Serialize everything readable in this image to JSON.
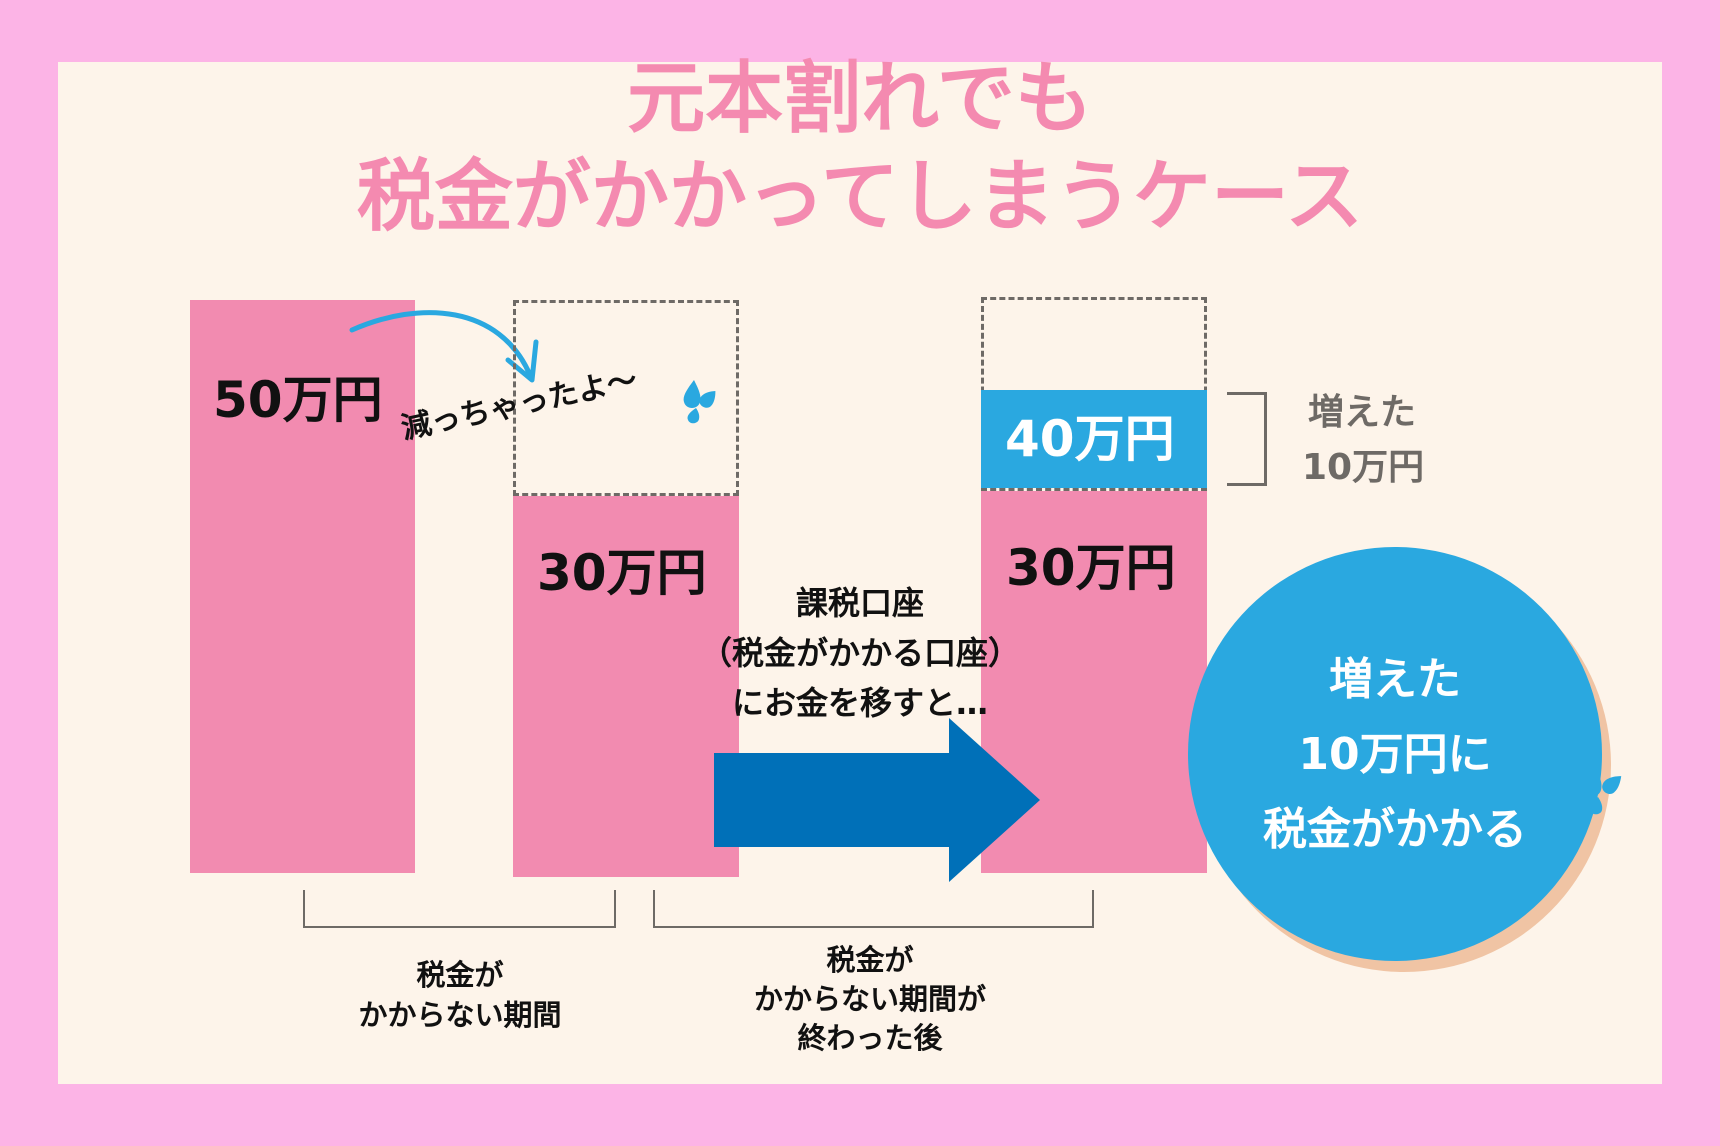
{
  "title": {
    "line1": "元本割れでも",
    "line2": "税金がかかってしまうケース"
  },
  "bars": {
    "initial_label": "50万円",
    "decreased_label": "30万円",
    "after_base_label": "30万円",
    "after_increase_label": "40万円"
  },
  "decrease_note": "減っちゃったよ〜",
  "increase_note": {
    "line1": "増えた",
    "line2": "10万円"
  },
  "transfer_note": {
    "line1": "課税口座",
    "line2": "（税金がかかる口座）",
    "line3": "にお金を移すと…"
  },
  "period_labels": {
    "tax_free": {
      "line1": "税金が",
      "line2": "かからない期間"
    },
    "after": {
      "line1": "税金が",
      "line2": "かからない期間が",
      "line3": "終わった後"
    }
  },
  "circle": {
    "line1": "増えた",
    "line2": "10万円に",
    "line3": "税金がかかる"
  },
  "colors": {
    "background": "#fcb4e6",
    "panel": "#fdf4ea",
    "pink": "#f28bb0",
    "blue": "#2aa8e0",
    "arrow": "#0070b8",
    "title": "#f48ab0"
  }
}
